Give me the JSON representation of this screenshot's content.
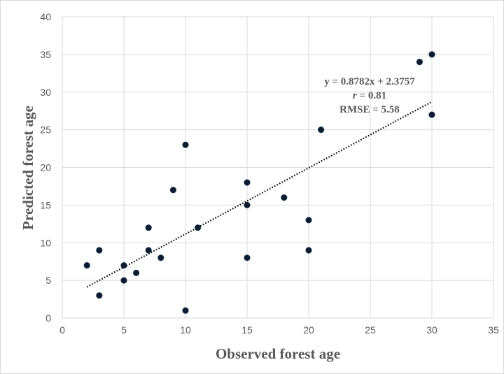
{
  "chart_data": {
    "type": "scatter",
    "xlabel": "Observed forest age",
    "ylabel": "Predicted forest age",
    "xlim": [
      0,
      35
    ],
    "ylim": [
      0,
      40
    ],
    "x_ticks": [
      0,
      5,
      10,
      15,
      20,
      25,
      30,
      35
    ],
    "y_ticks": [
      0,
      5,
      10,
      15,
      20,
      25,
      30,
      35,
      40
    ],
    "grid": true,
    "marker_color": "#0d1b2a",
    "points": [
      {
        "x": 2,
        "y": 7
      },
      {
        "x": 3,
        "y": 9
      },
      {
        "x": 3,
        "y": 3
      },
      {
        "x": 5,
        "y": 7
      },
      {
        "x": 5,
        "y": 5
      },
      {
        "x": 6,
        "y": 6
      },
      {
        "x": 7,
        "y": 12
      },
      {
        "x": 7,
        "y": 9
      },
      {
        "x": 8,
        "y": 8
      },
      {
        "x": 9,
        "y": 17
      },
      {
        "x": 10,
        "y": 23
      },
      {
        "x": 10,
        "y": 1
      },
      {
        "x": 11,
        "y": 12
      },
      {
        "x": 15,
        "y": 18
      },
      {
        "x": 15,
        "y": 15
      },
      {
        "x": 15,
        "y": 8
      },
      {
        "x": 18,
        "y": 16
      },
      {
        "x": 20,
        "y": 13
      },
      {
        "x": 20,
        "y": 9
      },
      {
        "x": 21,
        "y": 25
      },
      {
        "x": 29,
        "y": 34
      },
      {
        "x": 30,
        "y": 35
      },
      {
        "x": 30,
        "y": 27
      }
    ],
    "trendline": {
      "slope": 0.8782,
      "intercept": 2.3757,
      "x_range": [
        2,
        30
      ],
      "style": "dotted"
    },
    "annotations": {
      "equation": "y = 0.8782x + 2.3757",
      "r_symbol": "r",
      "r_value": " = 0.81",
      "rmse": "RMSE = 5.58"
    }
  }
}
